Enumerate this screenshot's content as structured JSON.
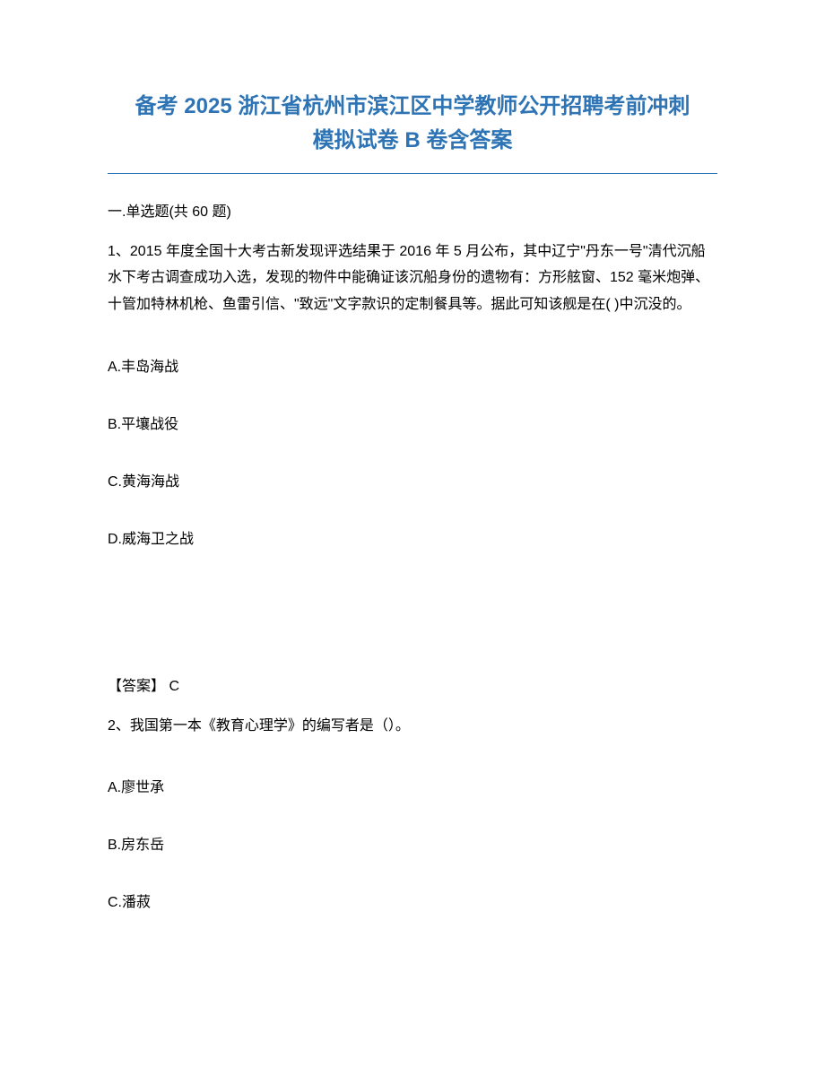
{
  "title": {
    "line1": "备考 2025 浙江省杭州市滨江区中学教师公开招聘考前冲刺",
    "line2": "模拟试卷 B 卷含答案",
    "color": "#2e74b5",
    "fontsize": 24
  },
  "divider": {
    "color": "#2e74b5"
  },
  "section": {
    "header": "一.单选题(共 60 题)"
  },
  "q1": {
    "text": "1、2015 年度全国十大考古新发现评选结果于 2016 年 5 月公布，其中辽宁\"丹东一号\"清代沉船水下考古调查成功入选，发现的物件中能确证该沉船身份的遗物有：方形舷窗、152 毫米炮弹、十管加特林机枪、鱼雷引信、\"致远\"文字款识的定制餐具等。据此可知该舰是在( )中沉没的。",
    "optA": "A.丰岛海战",
    "optB": "B.平壤战役",
    "optC": "C.黄海海战",
    "optD": "D.威海卫之战",
    "answer": "【答案】  C"
  },
  "q2": {
    "text": "2、我国第一本《教育心理学》的编写者是（）。",
    "optA": "A.廖世承",
    "optB": "B.房东岳",
    "optC": "C.潘菽"
  },
  "styles": {
    "body_fontsize": 16,
    "text_color": "#000000",
    "background": "#ffffff",
    "line_height": 1.85
  }
}
